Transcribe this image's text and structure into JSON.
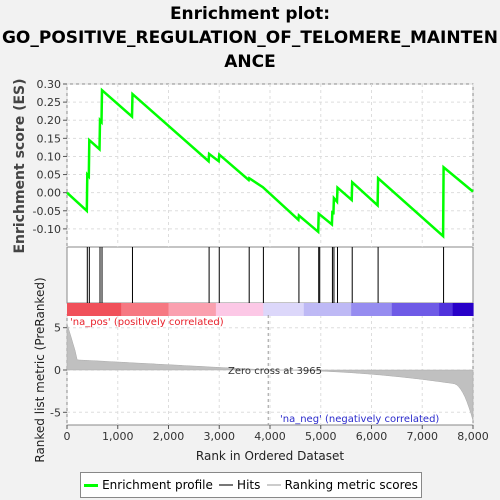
{
  "title_lines": [
    "Enrichment plot:",
    "GO_POSITIVE_REGULATION_OF_TELOMERE_MAINTEN",
    "ANCE"
  ],
  "chart_data": {
    "type": "line",
    "ylabel_top": "Enrichment score (ES)",
    "ylabel_bottom": "Ranked list metric (PreRanked)",
    "xlabel": "Rank in Ordered Dataset",
    "xlim": [
      0,
      8000
    ],
    "x_ticks": [
      0,
      1000,
      2000,
      3000,
      4000,
      5000,
      6000,
      7000,
      8000
    ],
    "x_tick_labels": [
      "0",
      "1,000",
      "2,000",
      "3,000",
      "4,000",
      "5,000",
      "6,000",
      "7,000",
      "8,000"
    ],
    "es_ylim": [
      -0.15,
      0.3
    ],
    "es_ticks": [
      0.3,
      0.25,
      0.2,
      0.15,
      0.1,
      0.05,
      0.0,
      -0.05,
      -0.1
    ],
    "es_tick_labels": [
      "0.30",
      "0.25",
      "0.20",
      "0.15",
      "0.10",
      "0.05",
      "0.00",
      "-0.05",
      "-0.10"
    ],
    "metric_ylim": [
      -6.5,
      6.5
    ],
    "metric_ticks": [
      5,
      0,
      -5
    ],
    "metric_tick_labels": [
      "5",
      "0",
      "-5"
    ],
    "hits": [
      400,
      440,
      650,
      690,
      1290,
      2800,
      3000,
      3590,
      3870,
      4570,
      4960,
      4980,
      5230,
      5260,
      5330,
      5620,
      6130,
      7420
    ],
    "enrichment_profile": [
      [
        0,
        0
      ],
      [
        390,
        -0.05
      ],
      [
        400,
        0.05
      ],
      [
        430,
        0.045
      ],
      [
        440,
        0.145
      ],
      [
        640,
        0.12
      ],
      [
        650,
        0.2
      ],
      [
        680,
        0.195
      ],
      [
        690,
        0.283
      ],
      [
        1280,
        0.21
      ],
      [
        1290,
        0.272
      ],
      [
        2790,
        0.087
      ],
      [
        2800,
        0.107
      ],
      [
        2990,
        0.087
      ],
      [
        3000,
        0.105
      ],
      [
        3580,
        0.035
      ],
      [
        3590,
        0.04
      ],
      [
        3860,
        0.015
      ],
      [
        4560,
        -0.075
      ],
      [
        4570,
        -0.063
      ],
      [
        4950,
        -0.108
      ],
      [
        4960,
        -0.058
      ],
      [
        5220,
        -0.088
      ],
      [
        5230,
        -0.05
      ],
      [
        5250,
        -0.06
      ],
      [
        5260,
        -0.015
      ],
      [
        5320,
        -0.025
      ],
      [
        5330,
        0.014
      ],
      [
        5610,
        -0.02
      ],
      [
        5620,
        0.029
      ],
      [
        6120,
        -0.035
      ],
      [
        6130,
        0.04
      ],
      [
        7410,
        -0.12
      ],
      [
        7420,
        0.07
      ],
      [
        8000,
        0.003
      ]
    ],
    "zero_cross_label": "Zero cross at 3965",
    "zero_cross": 3965,
    "pos_label": "'na_pos' (positively correlated)",
    "neg_label": "'na_neg' (negatively correlated)",
    "legend": [
      {
        "label": "Enrichment profile",
        "color": "#00ff00"
      },
      {
        "label": "Hits",
        "color": "#777777"
      },
      {
        "label": "Ranking metric scores",
        "color": "#cccccc"
      }
    ],
    "profile_color": "#00ff00"
  }
}
